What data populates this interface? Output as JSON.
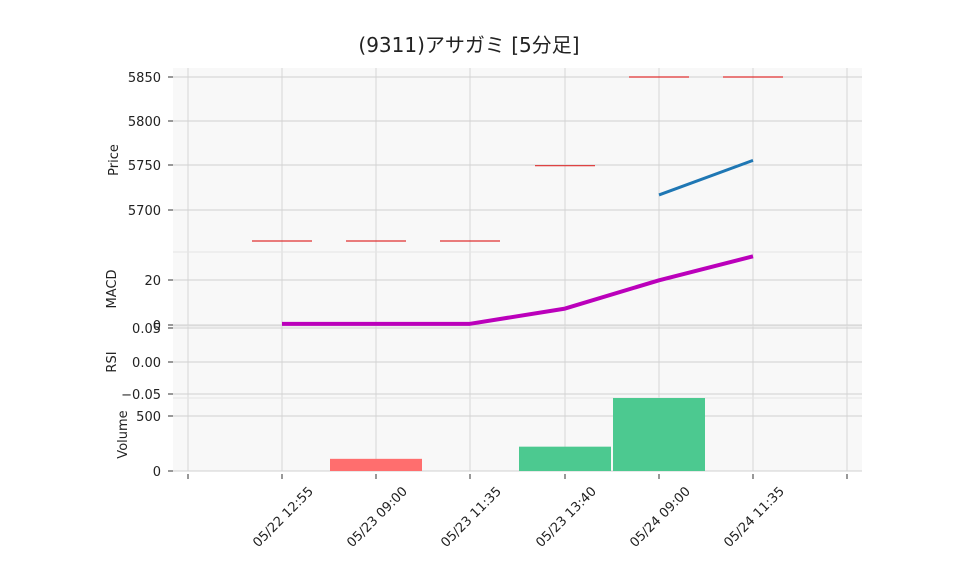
{
  "chart_data": {
    "type": "line",
    "title": "(9311)アサガミ  [5分足]",
    "x_ticks": [
      "05/22 12:55",
      "05/23 09:00",
      "05/23 11:35",
      "05/23 13:40",
      "05/24 09:00",
      "05/24 11:35"
    ],
    "panels": {
      "price": {
        "ylabel": "Price",
        "yticks": [
          "5700",
          "5750",
          "5800",
          "5850"
        ],
        "ylim": [
          5655,
          5858
        ],
        "colors": {
          "line": "#1f77b4",
          "dash": "#e03030"
        },
        "series": [
          {
            "type": "line",
            "x": [
              4,
              5
            ],
            "y": [
              5717,
              5756
            ]
          },
          {
            "type": "level",
            "x": [
              0,
              1,
              2,
              3,
              4,
              5
            ],
            "y": [
              5665,
              5665,
              5665,
              5750,
              5850,
              5850
            ]
          }
        ]
      },
      "macd": {
        "ylabel": "MACD",
        "yticks": [
          "0",
          "20"
        ],
        "ylim": [
          -1,
          33
        ],
        "colors": {
          "line": "#bb00bb"
        },
        "series": [
          {
            "type": "line",
            "x": [
              0,
              1,
              2,
              3,
              4,
              5
            ],
            "y": [
              0,
              0,
              0,
              7,
              20,
              31
            ]
          }
        ]
      },
      "rsi": {
        "ylabel": "RSI",
        "yticks": [
          "−0.05",
          "0.00",
          "0.05"
        ],
        "ylim": [
          -0.05,
          0.05
        ],
        "series": []
      },
      "volume": {
        "ylabel": "Volume",
        "yticks": [
          "0",
          "500"
        ],
        "ylim": [
          0,
          600
        ],
        "colors": {
          "down": "#ff6e6e",
          "up": "#4cc990"
        },
        "bars": [
          {
            "x": 1,
            "value": 100,
            "dir": "down"
          },
          {
            "x": 3,
            "value": 200,
            "dir": "up"
          },
          {
            "x": 4,
            "value": 600,
            "dir": "up"
          }
        ]
      }
    }
  }
}
